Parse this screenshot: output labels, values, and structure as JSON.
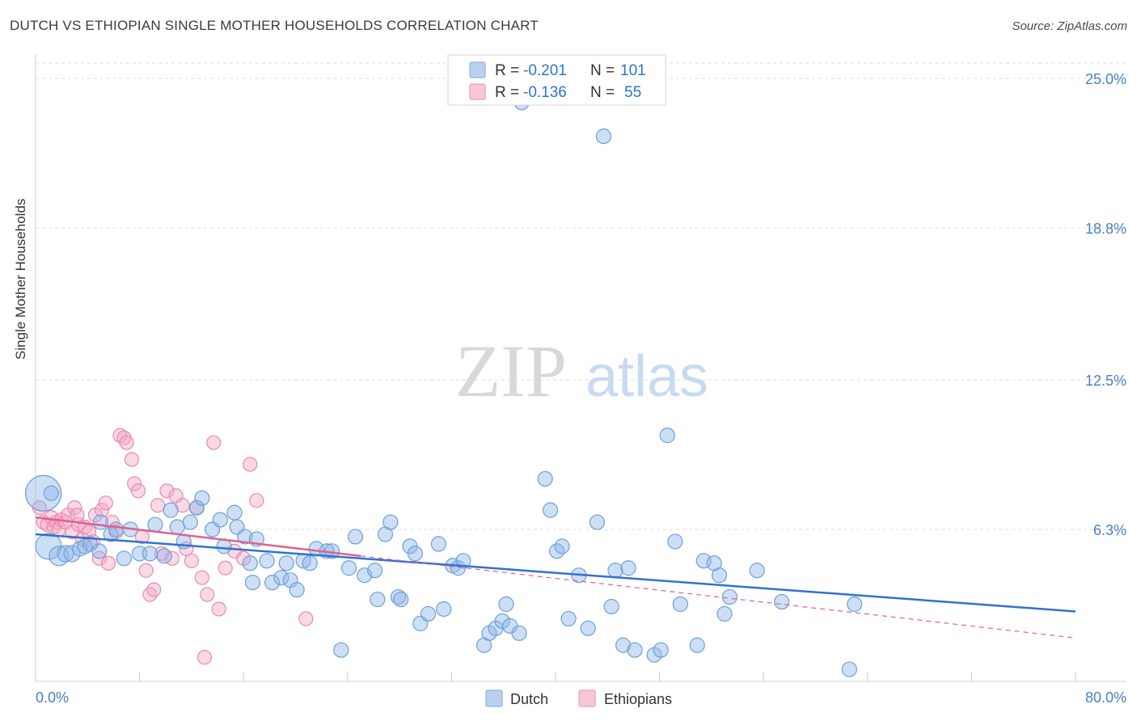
{
  "title": "DUTCH VS ETHIOPIAN SINGLE MOTHER HOUSEHOLDS CORRELATION CHART",
  "source": "Source: ZipAtlas.com",
  "watermark": {
    "zip": "ZIP",
    "atlas": "atlas"
  },
  "colors": {
    "blue": "#8fb8e8",
    "blue_stroke": "#6e9fd9",
    "blue_line": "#2f72d1",
    "pink": "#f4a9c3",
    "pink_stroke": "#e88aae",
    "pink_line": "#e0608e",
    "axis_text": "#4a7fc9",
    "grid": "#dedede"
  },
  "legend_top": [
    {
      "r_label": "R = ",
      "r_value": "-0.201",
      "n_label": "N = ",
      "n_value": "101"
    },
    {
      "r_label": "R = ",
      "r_value": "-0.136",
      "n_label": "N = ",
      "n_value": "55"
    }
  ],
  "legend_bottom": [
    "Dutch",
    "Ethiopians"
  ],
  "chart_data": {
    "type": "scatter",
    "xlabel": "",
    "ylabel": "Single Mother Households",
    "xlim": [
      0,
      80
    ],
    "ylim": [
      0,
      25
    ],
    "x_tick_labels": [
      "0.0%",
      "80.0%"
    ],
    "y_tick_labels": [
      "25.0%",
      "18.8%",
      "12.5%",
      "6.3%"
    ],
    "y_ticks": [
      25.0,
      18.8,
      12.5,
      6.3
    ],
    "series": [
      {
        "name": "Dutch",
        "r": -0.201,
        "n": 101,
        "trend": {
          "x0": 0,
          "y0": 6.1,
          "x1": 80,
          "y1": 2.9
        },
        "points": [
          [
            0.6,
            7.8
          ],
          [
            1.0,
            5.6
          ],
          [
            1.8,
            5.2
          ],
          [
            2.3,
            5.3
          ],
          [
            2.8,
            5.3
          ],
          [
            3.4,
            5.5
          ],
          [
            3.8,
            5.6
          ],
          [
            4.2,
            5.7
          ],
          [
            4.9,
            5.4
          ],
          [
            5.8,
            6.1
          ],
          [
            6.2,
            6.3
          ],
          [
            6.8,
            5.1
          ],
          [
            7.3,
            6.3
          ],
          [
            8.0,
            5.3
          ],
          [
            8.8,
            5.3
          ],
          [
            9.2,
            6.5
          ],
          [
            9.9,
            5.2
          ],
          [
            10.4,
            7.1
          ],
          [
            10.9,
            6.4
          ],
          [
            11.4,
            5.8
          ],
          [
            11.9,
            6.6
          ],
          [
            12.4,
            7.2
          ],
          [
            12.8,
            7.6
          ],
          [
            13.6,
            6.3
          ],
          [
            14.2,
            6.7
          ],
          [
            14.5,
            5.6
          ],
          [
            15.3,
            7.0
          ],
          [
            15.5,
            6.4
          ],
          [
            16.1,
            6.0
          ],
          [
            16.5,
            4.9
          ],
          [
            16.7,
            4.1
          ],
          [
            17.0,
            5.9
          ],
          [
            17.8,
            5.0
          ],
          [
            18.2,
            4.1
          ],
          [
            18.9,
            4.3
          ],
          [
            19.3,
            4.9
          ],
          [
            19.6,
            4.2
          ],
          [
            20.1,
            3.8
          ],
          [
            20.6,
            5.0
          ],
          [
            21.1,
            4.9
          ],
          [
            21.6,
            5.5
          ],
          [
            22.4,
            5.4
          ],
          [
            22.8,
            5.4
          ],
          [
            23.5,
            1.3
          ],
          [
            24.1,
            4.7
          ],
          [
            24.6,
            6.0
          ],
          [
            25.3,
            4.4
          ],
          [
            26.1,
            4.6
          ],
          [
            26.3,
            3.4
          ],
          [
            26.9,
            6.1
          ],
          [
            27.3,
            6.6
          ],
          [
            27.9,
            3.5
          ],
          [
            28.1,
            3.4
          ],
          [
            28.8,
            5.6
          ],
          [
            29.2,
            5.3
          ],
          [
            29.6,
            2.4
          ],
          [
            30.2,
            2.8
          ],
          [
            31.0,
            5.7
          ],
          [
            31.4,
            3.0
          ],
          [
            32.1,
            4.8
          ],
          [
            32.5,
            4.7
          ],
          [
            32.9,
            5.0
          ],
          [
            34.5,
            1.5
          ],
          [
            34.9,
            2.0
          ],
          [
            35.4,
            2.2
          ],
          [
            35.9,
            2.5
          ],
          [
            36.2,
            3.2
          ],
          [
            36.5,
            2.3
          ],
          [
            37.2,
            2.0
          ],
          [
            37.4,
            24.0
          ],
          [
            39.2,
            8.4
          ],
          [
            39.6,
            7.1
          ],
          [
            40.1,
            5.4
          ],
          [
            40.5,
            5.6
          ],
          [
            41.0,
            2.6
          ],
          [
            41.8,
            4.4
          ],
          [
            42.5,
            2.2
          ],
          [
            43.2,
            6.6
          ],
          [
            43.7,
            22.6
          ],
          [
            44.3,
            3.1
          ],
          [
            44.6,
            4.6
          ],
          [
            45.2,
            1.5
          ],
          [
            45.6,
            4.7
          ],
          [
            46.1,
            1.3
          ],
          [
            47.6,
            1.1
          ],
          [
            48.1,
            1.3
          ],
          [
            48.6,
            10.2
          ],
          [
            49.2,
            5.8
          ],
          [
            49.6,
            3.2
          ],
          [
            50.9,
            1.5
          ],
          [
            51.4,
            5.0
          ],
          [
            52.2,
            4.9
          ],
          [
            52.6,
            4.4
          ],
          [
            53.0,
            2.8
          ],
          [
            53.4,
            3.5
          ],
          [
            55.5,
            4.6
          ],
          [
            57.4,
            3.3
          ],
          [
            62.6,
            0.5
          ],
          [
            63.0,
            3.2
          ],
          [
            1.2,
            7.8
          ],
          [
            5.0,
            6.6
          ]
        ],
        "point_sizes": [
          22,
          16,
          12,
          10,
          10,
          9,
          9,
          9,
          9,
          9,
          9,
          9,
          9,
          9,
          9,
          9,
          9,
          9,
          9,
          9,
          9,
          9,
          9,
          9,
          9,
          9,
          9,
          9,
          9,
          9,
          9,
          9,
          9,
          9,
          9,
          9,
          9,
          9,
          9,
          9,
          9,
          9,
          9,
          9,
          9,
          9,
          9,
          9,
          9,
          9,
          9,
          9,
          9,
          9,
          9,
          9,
          9,
          9,
          9,
          9,
          9,
          9,
          9,
          9,
          9,
          9,
          9,
          9,
          9,
          9,
          9,
          9,
          9,
          9,
          9,
          9,
          9,
          9,
          9,
          9,
          9,
          9,
          9,
          9,
          9,
          9,
          9,
          9,
          9,
          9,
          9,
          9,
          9,
          9,
          9,
          9,
          9,
          9,
          9,
          9,
          9
        ]
      },
      {
        "name": "Ethiopians",
        "r": -0.136,
        "n": 55,
        "trend": {
          "x0": 0,
          "y0": 6.8,
          "x1": 25,
          "y1": 5.2,
          "dash_to": {
            "x": 80,
            "y": 1.8
          }
        },
        "points": [
          [
            0.3,
            7.2
          ],
          [
            0.6,
            6.6
          ],
          [
            0.9,
            6.5
          ],
          [
            1.2,
            6.8
          ],
          [
            1.4,
            6.4
          ],
          [
            1.6,
            6.6
          ],
          [
            1.8,
            6.3
          ],
          [
            2.0,
            6.7
          ],
          [
            2.3,
            6.6
          ],
          [
            2.5,
            6.9
          ],
          [
            2.8,
            6.2
          ],
          [
            3.0,
            7.2
          ],
          [
            3.3,
            6.5
          ],
          [
            3.6,
            5.9
          ],
          [
            3.8,
            6.4
          ],
          [
            4.1,
            6.2
          ],
          [
            4.4,
            5.8
          ],
          [
            4.6,
            6.9
          ],
          [
            4.9,
            5.1
          ],
          [
            5.1,
            7.1
          ],
          [
            5.4,
            7.4
          ],
          [
            5.6,
            4.9
          ],
          [
            5.9,
            6.6
          ],
          [
            6.2,
            6.2
          ],
          [
            6.5,
            10.2
          ],
          [
            6.8,
            10.1
          ],
          [
            7.0,
            9.9
          ],
          [
            7.4,
            9.2
          ],
          [
            7.6,
            8.2
          ],
          [
            7.9,
            7.9
          ],
          [
            8.2,
            6.0
          ],
          [
            8.5,
            4.6
          ],
          [
            8.8,
            3.6
          ],
          [
            9.1,
            3.8
          ],
          [
            9.4,
            7.3
          ],
          [
            9.7,
            5.3
          ],
          [
            10.1,
            7.9
          ],
          [
            10.5,
            5.1
          ],
          [
            10.8,
            7.7
          ],
          [
            11.3,
            7.3
          ],
          [
            11.6,
            5.5
          ],
          [
            12.0,
            5.0
          ],
          [
            12.4,
            7.2
          ],
          [
            12.8,
            4.3
          ],
          [
            13.2,
            3.6
          ],
          [
            13.7,
            9.9
          ],
          [
            14.1,
            3.0
          ],
          [
            14.6,
            4.7
          ],
          [
            15.3,
            5.4
          ],
          [
            16.0,
            5.1
          ],
          [
            16.5,
            9.0
          ],
          [
            17.0,
            7.5
          ],
          [
            20.8,
            2.6
          ],
          [
            13.0,
            1.0
          ],
          [
            3.2,
            6.9
          ]
        ]
      }
    ]
  }
}
